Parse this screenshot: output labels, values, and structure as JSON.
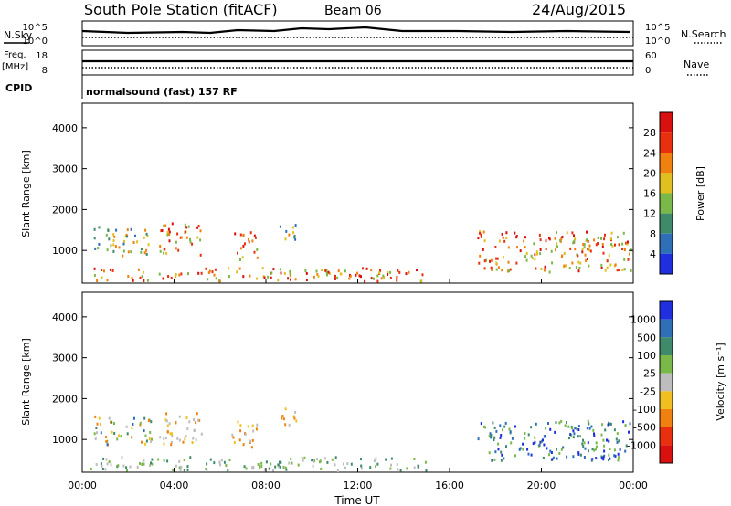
{
  "header": {
    "station": "South Pole Station (fitACF)",
    "beam": "Beam 06",
    "date": "24/Aug/2015"
  },
  "top_panels": {
    "nsky_label": "N.Sky",
    "nsearch_label": "N.Search",
    "log_top": "10^5",
    "log_bottom": "10^0",
    "freq_label": "Freq.",
    "freq_unit": "[MHz]",
    "freq_top": "18",
    "freq_bottom": "8",
    "nave_label": "Nave",
    "nave_top": "60",
    "nave_bottom": "0",
    "cpid_label": "CPID",
    "cpid_text": "normalsound (fast) 157 RF"
  },
  "chart_data": [
    {
      "type": "heatmap",
      "name": "power",
      "ylabel": "Slant Range [km]",
      "xlabel": "",
      "ylim": [
        200,
        4600
      ],
      "yticks": [
        "1000",
        "2000",
        "3000",
        "4000"
      ],
      "colorbar": {
        "label": "Power [dB]",
        "ticks": [
          "4",
          "8",
          "12",
          "16",
          "20",
          "24",
          "28"
        ],
        "colors": [
          "#1f2fe0",
          "#2e6fb8",
          "#3f8a6a",
          "#7ab84a",
          "#e0c020",
          "#f08010",
          "#e83010",
          "#d81010"
        ]
      },
      "echo_regions": [
        {
          "t0": 0.5,
          "t1": 3.0,
          "r0": 900,
          "r1": 1600,
          "level": "mid"
        },
        {
          "t0": 3.3,
          "t1": 5.2,
          "r0": 900,
          "r1": 1700,
          "level": "high"
        },
        {
          "t0": 6.5,
          "t1": 7.6,
          "r0": 800,
          "r1": 1500,
          "level": "high"
        },
        {
          "t0": 8.5,
          "t1": 9.3,
          "r0": 1300,
          "r1": 1800,
          "level": "mid"
        },
        {
          "t0": 17.2,
          "t1": 23.9,
          "r0": 500,
          "r1": 1500,
          "level": "high"
        },
        {
          "t0": 0.3,
          "t1": 15.0,
          "r0": 200,
          "r1": 600,
          "level": "high"
        }
      ]
    },
    {
      "type": "heatmap",
      "name": "velocity",
      "ylabel": "Slant Range [km]",
      "xlabel": "Time UT",
      "ylim": [
        200,
        4600
      ],
      "yticks": [
        "1000",
        "2000",
        "3000",
        "4000"
      ],
      "xticks": [
        "00:00",
        "04:00",
        "08:00",
        "12:00",
        "16:00",
        "20:00",
        "00:00"
      ],
      "colorbar": {
        "label": "Velocity [m s⁻¹]",
        "ticks": [
          "1000",
          "500",
          "100",
          "25",
          "-25",
          "-100",
          "-500",
          "-1000"
        ],
        "colors": [
          "#1f2fe0",
          "#2e6fb8",
          "#3f8a6a",
          "#7ab84a",
          "#bdbdbd",
          "#f0c020",
          "#f08010",
          "#e83010",
          "#d81010"
        ]
      },
      "echo_regions": [
        {
          "t0": 0.5,
          "t1": 3.0,
          "r0": 900,
          "r1": 1600,
          "level": "mixed"
        },
        {
          "t0": 3.3,
          "t1": 5.2,
          "r0": 900,
          "r1": 1700,
          "level": "neg"
        },
        {
          "t0": 6.5,
          "t1": 7.6,
          "r0": 800,
          "r1": 1500,
          "level": "neg"
        },
        {
          "t0": 8.5,
          "t1": 9.3,
          "r0": 1300,
          "r1": 1800,
          "level": "neg"
        },
        {
          "t0": 17.2,
          "t1": 23.9,
          "r0": 500,
          "r1": 1500,
          "level": "pos"
        },
        {
          "t0": 0.3,
          "t1": 15.0,
          "r0": 200,
          "r1": 600,
          "level": "low"
        }
      ]
    }
  ]
}
